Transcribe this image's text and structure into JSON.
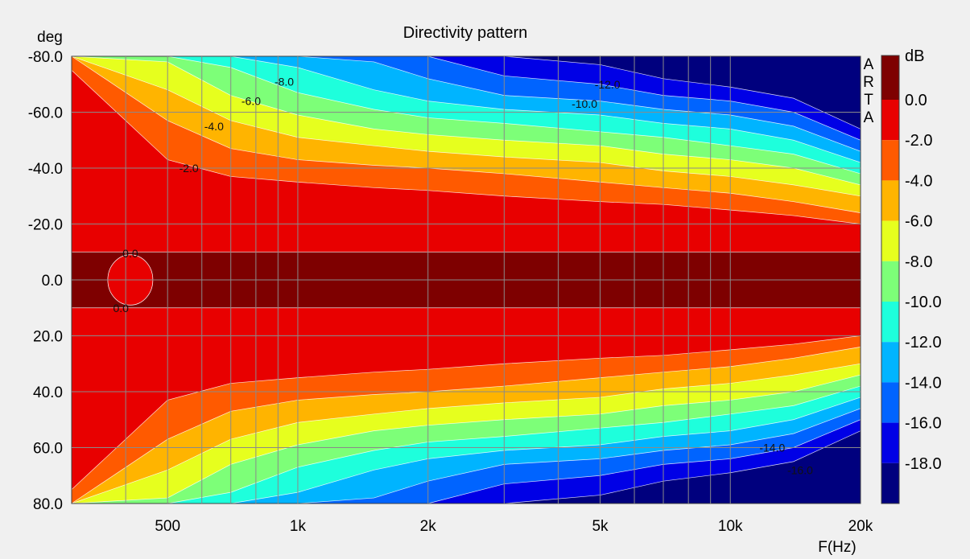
{
  "chart_data": {
    "type": "heatmap",
    "title": "Directivity pattern",
    "xlabel": "F(Hz)",
    "ylabel": "deg",
    "x_scale": "log",
    "xlim": [
      300,
      20000
    ],
    "ylim": [
      -80,
      80
    ],
    "x_tick_values": [
      500,
      1000,
      2000,
      5000,
      10000,
      20000
    ],
    "x_tick_labels": [
      "500",
      "1k",
      "2k",
      "5k",
      "10k",
      "20k"
    ],
    "y_tick_values": [
      -80,
      -60,
      -40,
      -20,
      0,
      20,
      40,
      60,
      80
    ],
    "y_tick_labels": [
      "-80.0",
      "-60.0",
      "-40.0",
      "-20.0",
      "0.0",
      "20.0",
      "40.0",
      "60.0",
      "80.0"
    ],
    "grid": true,
    "colorbar": {
      "label": "dB",
      "levels": [
        0.0,
        -2.0,
        -4.0,
        -6.0,
        -8.0,
        -10.0,
        -12.0,
        -14.0,
        -16.0,
        -18.0
      ],
      "level_labels": [
        "0.0",
        "-2.0",
        "-4.0",
        "-6.0",
        "-8.0",
        "-10.0",
        "-12.0",
        "-14.0",
        "-16.0",
        "-18.0"
      ],
      "colors": [
        "#7e0000",
        "#e80000",
        "#ff5a00",
        "#ffb400",
        "#e6ff1e",
        "#7dff78",
        "#1effdc",
        "#00b4ff",
        "#0064ff",
        "#0000e6",
        "#00007e"
      ]
    },
    "contour_boundaries_deg": {
      "freqs_hz": [
        300,
        500,
        700,
        1000,
        1500,
        2000,
        3000,
        5000,
        7000,
        10000,
        14000,
        20000
      ],
      "b_0": [
        10,
        10,
        10,
        10,
        10,
        10,
        10,
        10,
        10,
        10,
        10,
        10
      ],
      "b_2": [
        75,
        43,
        37,
        35,
        33,
        32,
        30,
        28,
        27,
        25,
        23,
        20
      ],
      "b_4": [
        80,
        57,
        47,
        43,
        41,
        40,
        38,
        35,
        33,
        31,
        28,
        24
      ],
      "b_6": [
        80,
        68,
        57,
        51,
        48,
        46,
        44,
        42,
        39,
        37,
        34,
        30
      ],
      "b_8": [
        80,
        78,
        66,
        59,
        54,
        52,
        50,
        48,
        45,
        43,
        40,
        34
      ],
      "b_10": [
        80,
        80,
        76,
        67,
        61,
        58,
        56,
        53,
        51,
        48,
        45,
        38
      ],
      "b_12": [
        80,
        80,
        80,
        76,
        68,
        64,
        61,
        59,
        56,
        54,
        50,
        42
      ],
      "b_14": [
        80,
        80,
        80,
        80,
        78,
        72,
        66,
        64,
        61,
        59,
        55,
        46
      ],
      "b_16": [
        80,
        80,
        80,
        80,
        80,
        80,
        73,
        70,
        66,
        64,
        60,
        50
      ],
      "b_18": [
        80,
        80,
        80,
        80,
        80,
        80,
        80,
        77,
        72,
        69,
        65,
        54
      ]
    },
    "annotations": [
      {
        "text": "-8.0",
        "freq_hz": 930,
        "deg": -71
      },
      {
        "text": "-6.0",
        "freq_hz": 780,
        "deg": -64
      },
      {
        "text": "-4.0",
        "freq_hz": 640,
        "deg": -55
      },
      {
        "text": "-2.0",
        "freq_hz": 560,
        "deg": -40
      },
      {
        "text": "0.0",
        "freq_hz": 410,
        "deg": -9.5
      },
      {
        "text": "0.0",
        "freq_hz": 390,
        "deg": 10
      },
      {
        "text": "-12.0",
        "freq_hz": 5200,
        "deg": -70
      },
      {
        "text": "-10.0",
        "freq_hz": 4600,
        "deg": -63
      },
      {
        "text": "-14.0",
        "freq_hz": 12500,
        "deg": 60
      },
      {
        "text": "-16.0",
        "freq_hz": 14500,
        "deg": 68
      }
    ]
  },
  "brand_letters": [
    "A",
    "R",
    "T",
    "A"
  ]
}
